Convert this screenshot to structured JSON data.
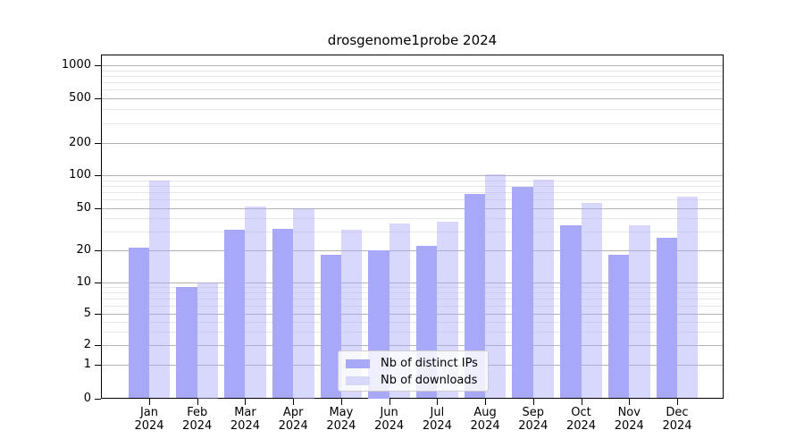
{
  "title": "drosgenome1probe 2024",
  "chart_data": {
    "type": "bar",
    "title": "drosgenome1probe 2024",
    "categories": [
      "Jan",
      "Feb",
      "Mar",
      "Apr",
      "May",
      "Jun",
      "Jul",
      "Aug",
      "Sep",
      "Oct",
      "Nov",
      "Dec"
    ],
    "year_label": "2024",
    "series": [
      {
        "name": "Nb of distinct IPs",
        "values": [
          21,
          9,
          31,
          32,
          18,
          20,
          22,
          67,
          78,
          34,
          18,
          26
        ],
        "bar_fill": "#a8a8f8",
        "legend_swatch": "#a8a8f8"
      },
      {
        "name": "Nb of downloads",
        "values": [
          90,
          10,
          51,
          50,
          31,
          36,
          37,
          101,
          91,
          55,
          34,
          63
        ],
        "bar_fill": "rgba(168,168,248,0.45)",
        "legend_swatch": "#d8d8f8"
      }
    ],
    "yticks": [
      0,
      1,
      2,
      5,
      10,
      20,
      50,
      100,
      200,
      500,
      1000
    ],
    "ytick_labels": [
      "0",
      "1",
      "2",
      "5",
      "10",
      "20",
      "50",
      "100",
      "200",
      "500",
      "1000"
    ],
    "scale": "pseudo-log",
    "ylim": [
      0,
      1250
    ],
    "grid": "horizontal, major + minor log subdivisions",
    "legend_position": "bottom-center",
    "colors": {
      "major_grid": "#b3b3b3",
      "minor_grid": "#e7e7e7",
      "axis": "#000000",
      "background": "#ffffff"
    }
  },
  "legend": {
    "items": [
      {
        "label": "Nb of distinct IPs"
      },
      {
        "label": "Nb of downloads"
      }
    ]
  }
}
